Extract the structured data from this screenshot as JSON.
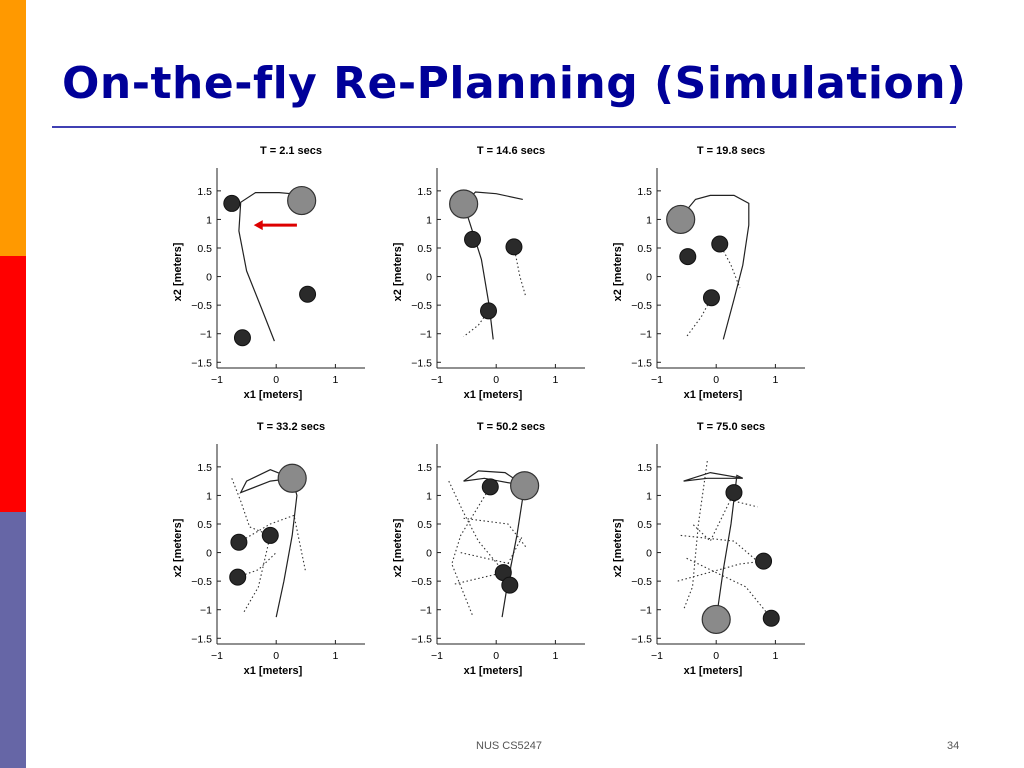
{
  "slide": {
    "title": "On-the-fly Re-Planning (Simulation)",
    "footer": "NUS CS5247",
    "page_number": "34"
  },
  "colors": {
    "title": "#000099",
    "side_top": "#ff9900",
    "side_middle": "#ff0000",
    "side_bottom": "#6666a6",
    "arrow": "#dd0000",
    "robot_fill": "#8a8a8a",
    "obstacle_fill": "#2a2a2a"
  },
  "chart_data": [
    {
      "type": "scatter",
      "title": "T = 2.1 secs",
      "xlabel": "x1 [meters]",
      "ylabel": "x2 [meters]",
      "xlim": [
        -1,
        1.5
      ],
      "ylim": [
        -1.6,
        1.9
      ],
      "xticks": [
        -1,
        0,
        1
      ],
      "yticks": [
        1.5,
        1,
        0.5,
        0,
        -0.5,
        -1,
        -1.5
      ],
      "robot": [
        0.43,
        1.33
      ],
      "obstacles": [
        [
          -0.75,
          1.28
        ],
        [
          0.53,
          -0.31
        ],
        [
          -0.57,
          -1.07
        ]
      ],
      "path": [
        [
          -0.03,
          -1.13
        ],
        [
          -0.25,
          -0.55
        ],
        [
          -0.5,
          0.1
        ],
        [
          -0.63,
          0.8
        ],
        [
          -0.6,
          1.3
        ],
        [
          -0.35,
          1.47
        ],
        [
          0.05,
          1.47
        ],
        [
          0.25,
          1.45
        ],
        [
          0.43,
          1.33
        ]
      ],
      "dotted_paths": [],
      "arrow": {
        "from": [
          0.35,
          0.9
        ],
        "to": [
          -0.38,
          0.9
        ]
      }
    },
    {
      "type": "scatter",
      "title": "T = 14.6 secs",
      "xlabel": "x1 [meters]",
      "ylabel": "x2 [meters]",
      "xlim": [
        -1,
        1.5
      ],
      "ylim": [
        -1.6,
        1.9
      ],
      "xticks": [
        -1,
        0,
        1
      ],
      "yticks": [
        1.5,
        1,
        0.5,
        0,
        -0.5,
        -1,
        -1.5
      ],
      "robot": [
        -0.55,
        1.27
      ],
      "obstacles": [
        [
          -0.4,
          0.65
        ],
        [
          0.3,
          0.52
        ],
        [
          -0.13,
          -0.6
        ]
      ],
      "path": [
        [
          -0.05,
          -1.1
        ],
        [
          -0.12,
          -0.5
        ],
        [
          -0.25,
          0.3
        ],
        [
          -0.45,
          0.95
        ],
        [
          -0.55,
          1.27
        ],
        [
          -0.35,
          1.48
        ],
        [
          0.0,
          1.45
        ],
        [
          0.45,
          1.35
        ]
      ],
      "dotted_paths": [
        [
          [
            0.3,
            0.52
          ],
          [
            0.4,
            0.0
          ],
          [
            0.5,
            -0.35
          ]
        ],
        [
          [
            -0.13,
            -0.6
          ],
          [
            -0.3,
            -0.85
          ],
          [
            -0.55,
            -1.05
          ]
        ]
      ],
      "arrow": null
    },
    {
      "type": "scatter",
      "title": "T = 19.8 secs",
      "xlabel": "x1 [meters]",
      "ylabel": "x2 [meters]",
      "xlim": [
        -1,
        1.5
      ],
      "ylim": [
        -1.6,
        1.9
      ],
      "xticks": [
        -1,
        0,
        1
      ],
      "yticks": [
        1.5,
        1,
        0.5,
        0,
        -0.5,
        -1,
        -1.5
      ],
      "robot": [
        -0.6,
        1.0
      ],
      "obstacles": [
        [
          -0.48,
          0.35
        ],
        [
          0.06,
          0.57
        ],
        [
          -0.08,
          -0.37
        ]
      ],
      "path": [
        [
          -0.55,
          1.1
        ],
        [
          -0.35,
          1.35
        ],
        [
          -0.1,
          1.42
        ],
        [
          0.3,
          1.42
        ],
        [
          0.55,
          1.28
        ],
        [
          0.55,
          0.9
        ],
        [
          0.45,
          0.2
        ],
        [
          0.3,
          -0.4
        ],
        [
          0.12,
          -1.1
        ]
      ],
      "dotted_paths": [
        [
          [
            0.06,
            0.57
          ],
          [
            0.25,
            0.2
          ],
          [
            0.4,
            -0.2
          ]
        ],
        [
          [
            -0.08,
            -0.37
          ],
          [
            -0.25,
            -0.7
          ],
          [
            -0.5,
            -1.05
          ]
        ]
      ],
      "arrow": null
    },
    {
      "type": "scatter",
      "title": "T = 33.2 secs",
      "xlabel": "x1 [meters]",
      "ylabel": "x2 [meters]",
      "xlim": [
        -1,
        1.5
      ],
      "ylim": [
        -1.6,
        1.9
      ],
      "xticks": [
        -1,
        0,
        1
      ],
      "yticks": [
        1.5,
        1,
        0.5,
        0,
        -0.5,
        -1,
        -1.5
      ],
      "robot": [
        0.27,
        1.3
      ],
      "obstacles": [
        [
          -0.63,
          0.18
        ],
        [
          -0.1,
          0.3
        ],
        [
          -0.65,
          -0.43
        ]
      ],
      "path": [
        [
          0.0,
          -1.13
        ],
        [
          0.13,
          -0.5
        ],
        [
          0.27,
          0.3
        ],
        [
          0.35,
          1.0
        ],
        [
          0.27,
          1.3
        ],
        [
          -0.1,
          1.45
        ],
        [
          -0.5,
          1.25
        ],
        [
          -0.6,
          1.05
        ],
        [
          -0.1,
          1.25
        ],
        [
          0.27,
          1.3
        ]
      ],
      "dotted_paths": [
        [
          [
            -0.75,
            1.3
          ],
          [
            -0.6,
            0.9
          ],
          [
            -0.45,
            0.45
          ],
          [
            -0.1,
            0.3
          ]
        ],
        [
          [
            -0.63,
            0.18
          ],
          [
            -0.1,
            0.5
          ],
          [
            0.3,
            0.65
          ],
          [
            0.5,
            -0.35
          ]
        ],
        [
          [
            -0.65,
            -0.43
          ],
          [
            -0.3,
            -0.3
          ],
          [
            0.0,
            0.0
          ]
        ],
        [
          [
            -0.1,
            0.3
          ],
          [
            -0.3,
            -0.6
          ],
          [
            -0.55,
            -1.05
          ]
        ]
      ],
      "arrow": null
    },
    {
      "type": "scatter",
      "title": "T = 50.2 secs",
      "xlabel": "x1 [meters]",
      "ylabel": "x2 [meters]",
      "xlim": [
        -1,
        1.5
      ],
      "ylim": [
        -1.6,
        1.9
      ],
      "xticks": [
        -1,
        0,
        1
      ],
      "yticks": [
        1.5,
        1,
        0.5,
        0,
        -0.5,
        -1,
        -1.5
      ],
      "robot": [
        0.48,
        1.17
      ],
      "obstacles": [
        [
          -0.1,
          1.15
        ],
        [
          0.12,
          -0.35
        ],
        [
          0.23,
          -0.57
        ]
      ],
      "path": [
        [
          0.1,
          -1.13
        ],
        [
          0.2,
          -0.5
        ],
        [
          0.35,
          0.3
        ],
        [
          0.48,
          1.17
        ],
        [
          0.15,
          1.4
        ],
        [
          -0.3,
          1.43
        ],
        [
          -0.55,
          1.25
        ],
        [
          -0.2,
          1.3
        ],
        [
          0.48,
          1.17
        ]
      ],
      "dotted_paths": [
        [
          [
            -0.8,
            1.25
          ],
          [
            -0.55,
            0.7
          ],
          [
            -0.3,
            0.2
          ],
          [
            0.1,
            -0.3
          ]
        ],
        [
          [
            -0.1,
            1.15
          ],
          [
            -0.6,
            0.3
          ],
          [
            -0.75,
            -0.2
          ],
          [
            -0.4,
            -1.1
          ]
        ],
        [
          [
            -0.55,
            0.6
          ],
          [
            0.2,
            0.5
          ],
          [
            0.5,
            0.1
          ]
        ],
        [
          [
            -0.7,
            -0.55
          ],
          [
            0.12,
            -0.35
          ],
          [
            0.45,
            0.3
          ]
        ],
        [
          [
            -0.6,
            0.0
          ],
          [
            0.25,
            -0.2
          ],
          [
            0.23,
            -0.57
          ]
        ]
      ],
      "arrow": null
    },
    {
      "type": "scatter",
      "title": "T = 75.0 secs",
      "xlabel": "x1 [meters]",
      "ylabel": "x2 [meters]",
      "xlim": [
        -1,
        1.5
      ],
      "ylim": [
        -1.6,
        1.9
      ],
      "xticks": [
        -1,
        0,
        1
      ],
      "yticks": [
        1.5,
        1,
        0.5,
        0,
        -0.5,
        -1,
        -1.5
      ],
      "robot": [
        0.0,
        -1.17
      ],
      "obstacles": [
        [
          0.3,
          1.05
        ],
        [
          0.8,
          -0.15
        ],
        [
          0.93,
          -1.15
        ]
      ],
      "path": [
        [
          0.0,
          -1.17
        ],
        [
          0.12,
          -0.3
        ],
        [
          0.25,
          0.5
        ],
        [
          0.35,
          1.35
        ],
        [
          0.45,
          1.3
        ],
        [
          -0.1,
          1.4
        ],
        [
          -0.55,
          1.25
        ],
        [
          -0.15,
          1.3
        ],
        [
          0.45,
          1.3
        ]
      ],
      "dotted_paths": [
        [
          [
            -0.15,
            1.6
          ],
          [
            -0.3,
            0.5
          ],
          [
            -0.4,
            -0.6
          ],
          [
            -0.55,
            -1.0
          ]
        ],
        [
          [
            -0.6,
            0.3
          ],
          [
            0.3,
            0.2
          ],
          [
            0.75,
            -0.2
          ]
        ],
        [
          [
            -0.65,
            -0.5
          ],
          [
            0.4,
            -0.2
          ],
          [
            0.8,
            -0.15
          ]
        ],
        [
          [
            -0.5,
            -0.1
          ],
          [
            0.5,
            -0.6
          ],
          [
            0.93,
            -1.15
          ]
        ],
        [
          [
            0.3,
            1.05
          ],
          [
            -0.1,
            0.2
          ],
          [
            -0.4,
            0.5
          ]
        ],
        [
          [
            0.3,
            0.9
          ],
          [
            0.7,
            0.8
          ]
        ]
      ],
      "arrow": null
    }
  ]
}
